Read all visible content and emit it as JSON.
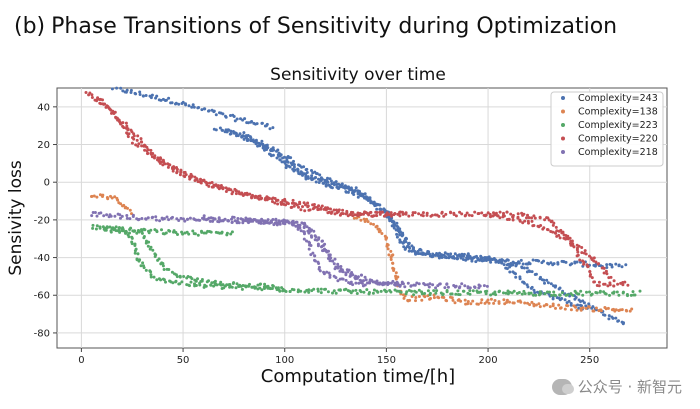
{
  "heading": {
    "tag": "(b)",
    "text": "Phase Transitions of Sensitivity during Optimization"
  },
  "watermark": {
    "text": "公众号 · 新智元",
    "icon": "wechat-icon"
  },
  "chart_data": {
    "type": "scatter",
    "title": "Sensitivity over time",
    "xlabel": "Computation time/[h]",
    "ylabel": "Sensivity loss",
    "xlim": [
      -12,
      288
    ],
    "ylim": [
      -88,
      50
    ],
    "xticks": [
      0,
      50,
      100,
      150,
      200,
      250
    ],
    "yticks": [
      -80,
      -60,
      -40,
      -20,
      0,
      20,
      40
    ],
    "grid": true,
    "legend_position": "top-right",
    "series": [
      {
        "name": "Complexity=243",
        "color": "#4c72b0",
        "segments": [
          [
            [
              15,
              50
            ],
            [
              45,
              43
            ],
            [
              75,
              34
            ],
            [
              95,
              29
            ]
          ],
          [
            [
              66,
              29
            ],
            [
              90,
              20
            ],
            [
              110,
              3
            ],
            [
              130,
              -3
            ],
            [
              142,
              -10
            ],
            [
              155,
              -22
            ],
            [
              162,
              -36
            ],
            [
              180,
              -40
            ],
            [
              210,
              -42
            ],
            [
              240,
              -43
            ],
            [
              268,
              -45
            ]
          ],
          [
            [
              70,
              28
            ],
            [
              95,
              17
            ],
            [
              115,
              4
            ],
            [
              135,
              -4
            ],
            [
              150,
              -16
            ],
            [
              165,
              -38
            ],
            [
              190,
              -39
            ],
            [
              215,
              -44
            ],
            [
              240,
              -60
            ],
            [
              268,
              -76
            ]
          ],
          [
            [
              80,
              26
            ],
            [
              102,
              8
            ],
            [
              122,
              -2
            ],
            [
              138,
              -6
            ],
            [
              150,
              -15
            ],
            [
              158,
              -34
            ],
            [
              175,
              -39
            ],
            [
              205,
              -41
            ],
            [
              222,
              -57
            ],
            [
              250,
              -68
            ]
          ]
        ]
      },
      {
        "name": "Complexity=138",
        "color": "#dd8452",
        "segments": [
          [
            [
              5,
              -7
            ],
            [
              15,
              -8
            ],
            [
              20,
              -12
            ],
            [
              25,
              -17
            ]
          ],
          [
            [
              135,
              -18
            ],
            [
              145,
              -23
            ],
            [
              150,
              -30
            ],
            [
              155,
              -50
            ],
            [
              157,
              -59
            ],
            [
              160,
              -62
            ],
            [
              175,
              -61
            ],
            [
              190,
              -64
            ],
            [
              205,
              -63
            ],
            [
              225,
              -65
            ],
            [
              245,
              -67
            ],
            [
              272,
              -68
            ]
          ]
        ]
      },
      {
        "name": "Complexity=223",
        "color": "#55a868",
        "segments": [
          [
            [
              5,
              -24
            ],
            [
              20,
              -25
            ],
            [
              25,
              -30
            ],
            [
              28,
              -42
            ],
            [
              35,
              -50
            ],
            [
              45,
              -53
            ],
            [
              60,
              -55
            ],
            [
              80,
              -56
            ],
            [
              100,
              -57
            ],
            [
              130,
              -58
            ],
            [
              160,
              -58.5
            ],
            [
              200,
              -58.8
            ],
            [
              240,
              -59
            ],
            [
              275,
              -59
            ]
          ],
          [
            [
              10,
              -25
            ],
            [
              30,
              -27
            ],
            [
              35,
              -37
            ],
            [
              42,
              -47
            ],
            [
              55,
              -52
            ],
            [
              75,
              -54
            ],
            [
              100,
              -56
            ]
          ],
          [
            [
              15,
              -25
            ],
            [
              50,
              -27
            ],
            [
              75,
              -27
            ]
          ]
        ]
      },
      {
        "name": "Complexity=220",
        "color": "#c44e52",
        "segments": [
          [
            [
              2,
              48
            ],
            [
              15,
              38
            ],
            [
              25,
              22
            ],
            [
              40,
              10
            ],
            [
              60,
              0
            ],
            [
              80,
              -6
            ],
            [
              100,
              -10
            ],
            [
              115,
              -13
            ],
            [
              130,
              -16
            ],
            [
              150,
              -17
            ]
          ],
          [
            [
              8,
              45
            ],
            [
              20,
              32
            ],
            [
              35,
              15
            ],
            [
              50,
              4
            ],
            [
              70,
              -4
            ],
            [
              90,
              -9
            ],
            [
              110,
              -14
            ],
            [
              130,
              -17
            ],
            [
              160,
              -17
            ]
          ],
          [
            [
              150,
              -17
            ],
            [
              185,
              -17
            ],
            [
              210,
              -17
            ],
            [
              228,
              -19
            ],
            [
              238,
              -28
            ],
            [
              248,
              -44
            ],
            [
              253,
              -54
            ],
            [
              270,
              -54
            ]
          ],
          [
            [
              200,
              -17
            ],
            [
              220,
              -21
            ],
            [
              240,
              -31
            ],
            [
              255,
              -44
            ],
            [
              262,
              -52
            ]
          ]
        ]
      },
      {
        "name": "Complexity=218",
        "color": "#8172b2",
        "segments": [
          [
            [
              5,
              -17
            ],
            [
              30,
              -19
            ],
            [
              60,
              -20
            ],
            [
              90,
              -21
            ],
            [
              105,
              -22
            ],
            [
              110,
              -28
            ],
            [
              116,
              -44
            ],
            [
              122,
              -50
            ],
            [
              135,
              -54
            ],
            [
              150,
              -54
            ],
            [
              175,
              -55
            ],
            [
              200,
              -55
            ]
          ],
          [
            [
              60,
              -19
            ],
            [
              100,
              -21
            ],
            [
              110,
              -24
            ],
            [
              120,
              -37
            ],
            [
              128,
              -47
            ],
            [
              138,
              -52
            ],
            [
              160,
              -54
            ]
          ],
          [
            [
              80,
              -20
            ],
            [
              110,
              -22
            ],
            [
              118,
              -31
            ],
            [
              125,
              -45
            ],
            [
              140,
              -51
            ]
          ]
        ]
      }
    ]
  }
}
